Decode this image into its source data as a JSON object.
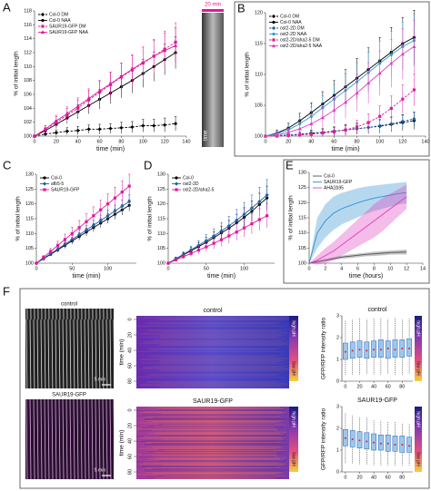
{
  "figure": {
    "panels": [
      "A",
      "B",
      "C",
      "D",
      "E",
      "F"
    ],
    "a_strip": {
      "top_label": "20 min",
      "bottom_label": "time"
    },
    "f_rows": [
      {
        "kymo_label": "control",
        "scale": "5 min",
        "heatmap_title": "control",
        "time_label": "time (min)",
        "time_ticks": [
          0,
          20,
          40,
          60,
          80
        ],
        "high": "high pH",
        "low": "low pH"
      },
      {
        "kymo_label": "SAUR19-GFP",
        "scale": "5 min",
        "heatmap_title": "SAUR19-GFP",
        "time_label": "time (min)",
        "time_ticks": [
          0,
          20,
          40,
          60,
          80
        ],
        "high": "high pH",
        "low": "low pH"
      }
    ]
  },
  "chart_data": [
    {
      "type": "line",
      "xlabel": "time (min)",
      "ylabel": "% of initial length",
      "xlim": [
        0,
        140
      ],
      "xticks": [
        0,
        20,
        40,
        60,
        80,
        100,
        120,
        140
      ],
      "ylim": [
        100,
        118
      ],
      "yticks": [
        100,
        102,
        104,
        106,
        108,
        110,
        112,
        114,
        116,
        118
      ],
      "legend": "upper-left",
      "x": [
        0,
        10,
        20,
        30,
        40,
        50,
        60,
        70,
        80,
        90,
        100,
        110,
        120,
        130
      ],
      "series": [
        {
          "name": "Col-0 DM",
          "color": "#000000",
          "dash": true,
          "marker": "diamond",
          "values": [
            100,
            100.3,
            100.5,
            100.7,
            100.8,
            101,
            101,
            101.1,
            101.2,
            101.3,
            101.5,
            101.5,
            101.6,
            101.8
          ],
          "errors": [
            0,
            0.3,
            0.4,
            0.5,
            0.6,
            0.6,
            0.7,
            0.7,
            0.8,
            0.8,
            0.9,
            0.9,
            1,
            1
          ]
        },
        {
          "name": "Col-0 NAA",
          "color": "#000000",
          "dash": false,
          "marker": "circle",
          "values": [
            100,
            100.8,
            101.7,
            102.6,
            103.5,
            104.4,
            105.3,
            106.2,
            107.1,
            108,
            109,
            110,
            111,
            112
          ],
          "errors": [
            0,
            0.4,
            0.6,
            0.8,
            1,
            1.2,
            1.4,
            1.5,
            1.6,
            1.8,
            2,
            2.1,
            2.2,
            2.3
          ]
        },
        {
          "name": "SAUR19-GFP DM",
          "color": "#e0189c",
          "dash": true,
          "marker": "square",
          "values": [
            100,
            101,
            102,
            103,
            104,
            105.2,
            106.3,
            107.4,
            108.5,
            109.5,
            110.5,
            111.5,
            112.5,
            113.5
          ],
          "errors": [
            0,
            0.5,
            0.8,
            1,
            1.2,
            1.4,
            1.6,
            1.8,
            2,
            2.2,
            2.3,
            2.4,
            2.6,
            2.8
          ]
        },
        {
          "name": "SAUR19-GFP NAA",
          "color": "#e0189c",
          "dash": false,
          "marker": "triangle",
          "values": [
            100,
            101,
            102.2,
            103.2,
            104.3,
            105.4,
            106.5,
            107.5,
            108.6,
            109.6,
            110.6,
            111.5,
            112.3,
            113
          ],
          "errors": [
            0,
            0.5,
            0.8,
            1,
            1.2,
            1.4,
            1.5,
            1.7,
            1.9,
            2,
            2.2,
            2.3,
            2.5,
            2.6
          ]
        }
      ]
    },
    {
      "type": "line",
      "xlabel": "time (min)",
      "ylabel": "% of initial length",
      "xlim": [
        0,
        140
      ],
      "xticks": [
        0,
        20,
        40,
        60,
        80,
        100,
        120,
        140
      ],
      "ylim": [
        100,
        120
      ],
      "yticks": [
        100,
        105,
        110,
        115,
        120
      ],
      "legend": "upper-left",
      "x": [
        0,
        10,
        20,
        30,
        40,
        50,
        60,
        70,
        80,
        90,
        100,
        110,
        120,
        130
      ],
      "series": [
        {
          "name": "Col-0 DM",
          "color": "#000000",
          "dash": true,
          "marker": "diamond",
          "values": [
            100,
            100.1,
            100.2,
            100.3,
            100.5,
            100.6,
            100.8,
            101,
            101.2,
            101.4,
            101.6,
            101.9,
            102.2,
            102.5
          ],
          "errors": [
            0,
            0.2,
            0.3,
            0.4,
            0.5,
            0.6,
            0.7,
            0.8,
            0.9,
            1,
            1.1,
            1.2,
            1.3,
            1.4
          ]
        },
        {
          "name": "Col-0 NAA",
          "color": "#000000",
          "dash": false,
          "marker": "circle",
          "values": [
            100,
            100.5,
            101.3,
            102.5,
            103.8,
            105.2,
            106.6,
            108,
            109.4,
            110.8,
            112.2,
            113.6,
            115,
            116
          ],
          "errors": [
            0,
            0.5,
            0.8,
            1.2,
            1.6,
            2,
            2.4,
            2.8,
            3.2,
            3.5,
            3.8,
            4,
            4.2,
            4.4
          ]
        },
        {
          "name": "ost2-2D DM",
          "color": "#1a5fa8",
          "dash": true,
          "marker": "diamond",
          "values": [
            100,
            100.1,
            100.2,
            100.3,
            100.4,
            100.6,
            100.8,
            101,
            101.2,
            101.4,
            101.7,
            102,
            102.4,
            102.8
          ],
          "errors": [
            0,
            0.2,
            0.3,
            0.4,
            0.5,
            0.5,
            0.6,
            0.7,
            0.8,
            0.8,
            0.9,
            1,
            1,
            1.1
          ]
        },
        {
          "name": "ost2-2D NAA",
          "color": "#3399cc",
          "dash": false,
          "marker": "circle",
          "values": [
            100,
            100.4,
            101,
            102,
            103.2,
            104.6,
            106,
            107.4,
            108.8,
            110.3,
            111.8,
            113.2,
            114.5,
            115.5
          ],
          "errors": [
            0,
            0.5,
            0.8,
            1.1,
            1.5,
            1.9,
            2.3,
            2.7,
            3,
            3.3,
            3.6,
            3.8,
            4,
            4.2
          ]
        },
        {
          "name": "ost2-2D/aha2-5 DM",
          "color": "#e0189c",
          "dash": true,
          "marker": "square",
          "values": [
            100,
            100,
            100.1,
            100.2,
            100.3,
            100.5,
            100.7,
            101,
            101.5,
            102.2,
            103.2,
            104.5,
            106,
            107.5
          ],
          "errors": [
            0,
            0.2,
            0.3,
            0.4,
            0.5,
            0.6,
            0.7,
            0.9,
            1.1,
            1.4,
            1.7,
            2,
            2.3,
            2.6
          ]
        },
        {
          "name": "ost2-2D/aha2-5 NAA",
          "color": "#e040c0",
          "dash": false,
          "marker": "triangle",
          "values": [
            100,
            100.2,
            100.6,
            101.2,
            102,
            103,
            104.2,
            105.5,
            107,
            108.6,
            110.2,
            111.8,
            113.3,
            114.5
          ],
          "errors": [
            0,
            0.4,
            0.7,
            1,
            1.4,
            1.8,
            2.2,
            2.6,
            3,
            3.3,
            3.6,
            3.9,
            4.1,
            4.3
          ]
        }
      ]
    },
    {
      "type": "line",
      "xlabel": "time (min)",
      "ylabel": "% of initial length",
      "xlim": [
        0,
        140
      ],
      "xticks": [
        0,
        50,
        100
      ],
      "ylim": [
        100,
        130
      ],
      "yticks": [
        100,
        105,
        110,
        115,
        120,
        125,
        130
      ],
      "legend": "upper-left",
      "x": [
        0,
        10,
        20,
        30,
        40,
        50,
        60,
        70,
        80,
        90,
        100,
        110,
        120,
        130
      ],
      "series": [
        {
          "name": "Col-0",
          "color": "#000000",
          "dash": false,
          "marker": "circle",
          "values": [
            100,
            101.5,
            103,
            104.5,
            106,
            107.5,
            109,
            110.5,
            112,
            113.5,
            115,
            116.5,
            118,
            119.5
          ],
          "errors": [
            0,
            0.4,
            0.6,
            0.8,
            1,
            1.1,
            1.2,
            1.3,
            1.4,
            1.5,
            1.6,
            1.7,
            1.8,
            1.9
          ]
        },
        {
          "name": "afb5-5",
          "color": "#1a5fa8",
          "dash": false,
          "marker": "diamond",
          "values": [
            100,
            101.6,
            103.2,
            104.8,
            106.4,
            108,
            109.6,
            111.2,
            112.8,
            114.4,
            116,
            117.6,
            119.2,
            120.8
          ],
          "errors": [
            0,
            0.5,
            0.7,
            0.9,
            1.1,
            1.3,
            1.5,
            1.6,
            1.7,
            1.8,
            1.9,
            2,
            2.1,
            2.2
          ]
        },
        {
          "name": "SAUR19-GFP",
          "color": "#e0189c",
          "dash": false,
          "marker": "square",
          "values": [
            100,
            102,
            104,
            106,
            108,
            110,
            112,
            114,
            116,
            118,
            120,
            122,
            124,
            126
          ],
          "errors": [
            0,
            0.6,
            1,
            1.4,
            1.8,
            2.1,
            2.4,
            2.7,
            3,
            3.2,
            3.4,
            3.6,
            3.8,
            4
          ]
        }
      ]
    },
    {
      "type": "line",
      "xlabel": "time (min)",
      "ylabel": "% of initial length",
      "xlim": [
        0,
        140
      ],
      "xticks": [
        0,
        50,
        100
      ],
      "ylim": [
        100,
        130
      ],
      "yticks": [
        100,
        105,
        110,
        115,
        120,
        125,
        130
      ],
      "legend": "upper-left",
      "x": [
        0,
        10,
        20,
        30,
        40,
        50,
        60,
        70,
        80,
        90,
        100,
        110,
        120,
        130
      ],
      "series": [
        {
          "name": "Col-0",
          "color": "#000000",
          "dash": false,
          "marker": "circle",
          "values": [
            100,
            101.4,
            102.8,
            104.2,
            105.6,
            107,
            108.6,
            110.2,
            111.8,
            113.6,
            115.5,
            117.5,
            119.8,
            122
          ],
          "errors": [
            0,
            0.5,
            0.8,
            1.1,
            1.4,
            1.7,
            2,
            2.3,
            2.6,
            2.9,
            3.2,
            3.5,
            3.8,
            4
          ]
        },
        {
          "name": "ost2-2D",
          "color": "#1a5fa8",
          "dash": false,
          "marker": "diamond",
          "values": [
            100,
            101.5,
            103,
            104.5,
            106,
            107.6,
            109.2,
            110.9,
            112.6,
            114.5,
            116.5,
            118.6,
            120.8,
            123
          ],
          "errors": [
            0,
            0.6,
            0.9,
            1.2,
            1.6,
            2,
            2.4,
            2.8,
            3.2,
            3.6,
            4,
            4.4,
            4.8,
            5.2
          ]
        },
        {
          "name": "ost2-2D/aha2-5",
          "color": "#e0189c",
          "dash": false,
          "marker": "square",
          "values": [
            100,
            101.1,
            102.2,
            103.3,
            104.4,
            105.5,
            106.7,
            107.9,
            109.2,
            110.5,
            111.9,
            113.3,
            114.7,
            116
          ],
          "errors": [
            0,
            0.4,
            0.7,
            1,
            1.3,
            1.6,
            1.9,
            2.2,
            2.5,
            2.8,
            3.1,
            3.4,
            3.7,
            4
          ]
        }
      ]
    },
    {
      "type": "line",
      "error_style": "band",
      "xlabel": "time (hours)",
      "ylabel": "% of initial length",
      "xlim": [
        0,
        14
      ],
      "xticks": [
        0,
        2,
        4,
        6,
        8,
        10,
        12,
        14
      ],
      "ylim": [
        100,
        130
      ],
      "yticks": [
        100,
        105,
        110,
        115,
        120,
        125,
        130
      ],
      "legend": "upper-left",
      "x": [
        0,
        1,
        2,
        3,
        4,
        5,
        6,
        7,
        8,
        9,
        10,
        11,
        12
      ],
      "series": [
        {
          "name": "Col-0",
          "color": "#555555",
          "dash": false,
          "marker": "none",
          "values": [
            100,
            100.5,
            101,
            101.5,
            102,
            102.3,
            102.6,
            102.9,
            103.1,
            103.3,
            103.5,
            103.6,
            103.7
          ],
          "errors": [
            0,
            0.3,
            0.4,
            0.5,
            0.5,
            0.6,
            0.6,
            0.6,
            0.7,
            0.7,
            0.7,
            0.7,
            0.8
          ]
        },
        {
          "name": "SAUR19-GFP",
          "color": "#2f8fd0",
          "dash": false,
          "marker": "none",
          "values": [
            100,
            110,
            114,
            116.5,
            118,
            119,
            120,
            120.8,
            121.5,
            122,
            122.5,
            123,
            123.3
          ],
          "errors": [
            0,
            5,
            5.5,
            5.5,
            5.2,
            5,
            4.8,
            4.5,
            4.2,
            4,
            3.8,
            3.6,
            3.5
          ]
        },
        {
          "name": "AHA2Δ95",
          "color": "#e040c0",
          "dash": false,
          "marker": "none",
          "values": [
            100,
            101,
            102.5,
            104,
            106,
            108,
            110,
            112,
            114,
            116,
            118,
            120,
            122
          ],
          "errors": [
            0,
            1.5,
            2.5,
            3,
            3.5,
            4,
            4.5,
            5,
            5.5,
            5.5,
            5,
            4.5,
            4
          ]
        }
      ]
    },
    {
      "type": "box",
      "title": "control",
      "ylabel": "GFP/RFP intensity ratio",
      "xlim": [
        -5,
        95
      ],
      "xticks": [
        0,
        20,
        40,
        60,
        80
      ],
      "ylim": [
        0,
        3
      ],
      "yticks": [
        0,
        1,
        2,
        3
      ],
      "x": [
        0,
        10,
        20,
        30,
        40,
        50,
        60,
        70,
        80,
        90
      ],
      "low": [
        0.3,
        0.3,
        0.3,
        0.35,
        0.3,
        0.3,
        0.35,
        0.3,
        0.3,
        0.35
      ],
      "q1": [
        1.0,
        1.05,
        1.1,
        1.05,
        1.1,
        1.1,
        1.05,
        1.1,
        1.1,
        1.15
      ],
      "median": [
        1.35,
        1.4,
        1.45,
        1.4,
        1.45,
        1.45,
        1.5,
        1.45,
        1.5,
        1.5
      ],
      "q3": [
        1.75,
        1.8,
        1.85,
        1.8,
        1.85,
        1.9,
        1.85,
        1.9,
        1.9,
        1.95
      ],
      "high": [
        2.8,
        2.85,
        2.9,
        2.85,
        2.9,
        2.9,
        2.85,
        2.9,
        2.85,
        2.9
      ]
    },
    {
      "type": "box",
      "title": "SAUR19-GFP",
      "ylabel": "GFP/RFP intensity ratio",
      "xlim": [
        -5,
        95
      ],
      "xticks": [
        0,
        20,
        40,
        60,
        80
      ],
      "ylim": [
        0,
        3
      ],
      "yticks": [
        0,
        1,
        2,
        3
      ],
      "x": [
        0,
        10,
        20,
        30,
        40,
        50,
        60,
        70,
        80,
        90
      ],
      "low": [
        0.4,
        0.4,
        0.35,
        0.35,
        0.3,
        0.3,
        0.3,
        0.3,
        0.3,
        0.3
      ],
      "q1": [
        1.2,
        1.15,
        1.1,
        1.05,
        1.0,
        1.0,
        0.95,
        0.95,
        0.9,
        0.9
      ],
      "median": [
        1.55,
        1.5,
        1.45,
        1.4,
        1.35,
        1.3,
        1.3,
        1.25,
        1.25,
        1.2
      ],
      "q3": [
        1.95,
        1.9,
        1.85,
        1.8,
        1.75,
        1.7,
        1.7,
        1.65,
        1.65,
        1.6
      ],
      "high": [
        2.7,
        2.6,
        2.5,
        2.5,
        2.4,
        2.35,
        2.3,
        2.3,
        2.25,
        2.2
      ]
    }
  ]
}
